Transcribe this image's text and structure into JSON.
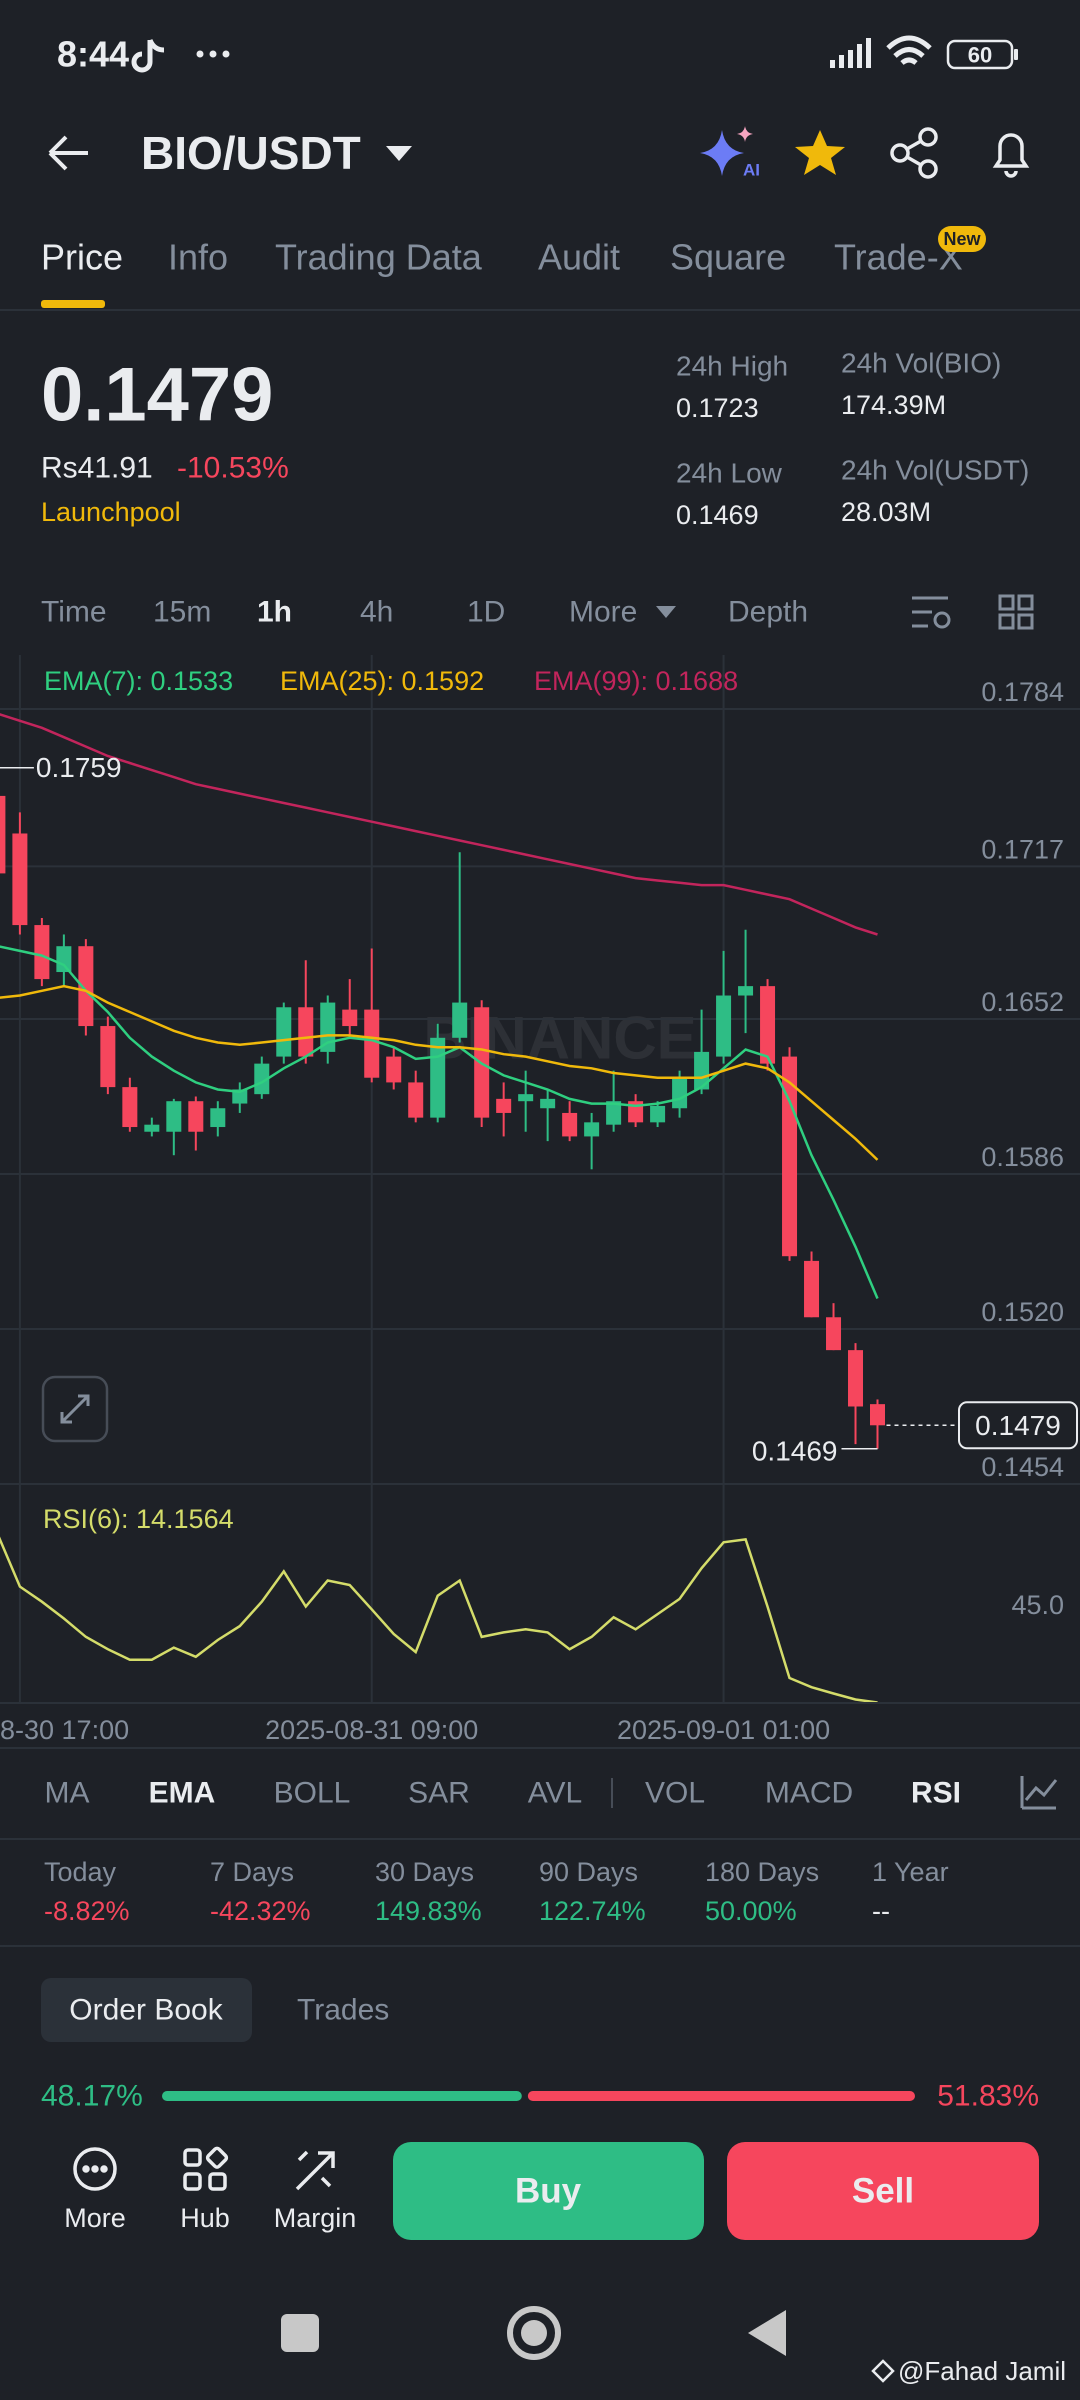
{
  "status_bar": {
    "time": "8:44",
    "battery": "60"
  },
  "header": {
    "pair": "BIO/USDT"
  },
  "tabs": {
    "items": [
      "Price",
      "Info",
      "Trading Data",
      "Audit",
      "Square",
      "Trade-X"
    ],
    "badge": "New"
  },
  "ticker": {
    "price": "0.1479",
    "fiat": "Rs41.91",
    "change": "-10.53%",
    "tag": "Launchpool",
    "stats": [
      {
        "label": "24h High",
        "value": "0.1723"
      },
      {
        "label": "24h Low",
        "value": "0.1469"
      },
      {
        "label": "24h Vol(BIO)",
        "value": "174.39M"
      },
      {
        "label": "24h Vol(USDT)",
        "value": "28.03M"
      }
    ]
  },
  "intervals": {
    "items": [
      "Time",
      "15m",
      "1h",
      "4h",
      "1D",
      "More",
      "Depth"
    ]
  },
  "chart_data": [
    {
      "type": "candlestick",
      "categories": [
        null,
        "8-30 17:00",
        null,
        null,
        null,
        null,
        null,
        null,
        null,
        null,
        null,
        null,
        null,
        null,
        null,
        null,
        null,
        "2025-08-31 09:00",
        null,
        null,
        null,
        null,
        null,
        null,
        null,
        null,
        null,
        null,
        null,
        null,
        null,
        null,
        null,
        "2025-09-01 01:00",
        null,
        null,
        null,
        null,
        null,
        null,
        null
      ],
      "open": [
        0.1747,
        0.1731,
        0.1692,
        0.1672,
        0.1683,
        0.1649,
        0.1623,
        0.1604,
        0.1604,
        0.1617,
        0.1606,
        0.1616,
        0.162,
        0.1636,
        0.1657,
        0.1638,
        0.1656,
        0.1656,
        0.1636,
        0.1625,
        0.161,
        0.1644,
        0.1657,
        0.1618,
        0.1617,
        0.1614,
        0.1612,
        0.1602,
        0.1607,
        0.1617,
        0.1608,
        0.1614,
        0.1622,
        0.1636,
        0.1662,
        0.1666,
        0.1636,
        0.1549,
        0.1525,
        0.1511,
        0.1488
      ],
      "high": [
        0.1759,
        0.174,
        0.1695,
        0.1688,
        0.1686,
        0.1653,
        0.1627,
        0.161,
        0.1618,
        0.1619,
        0.1617,
        0.1625,
        0.1636,
        0.1659,
        0.1677,
        0.1662,
        0.1669,
        0.1682,
        0.164,
        0.163,
        0.165,
        0.1723,
        0.166,
        0.1625,
        0.163,
        0.1622,
        0.1617,
        0.1612,
        0.163,
        0.162,
        0.1617,
        0.163,
        0.1656,
        0.1681,
        0.169,
        0.1669,
        0.164,
        0.1553,
        0.1531,
        0.1514,
        0.149
      ],
      "low": [
        0.1712,
        0.1688,
        0.1666,
        0.1666,
        0.1645,
        0.162,
        0.1604,
        0.1602,
        0.1594,
        0.1596,
        0.1602,
        0.1612,
        0.1618,
        0.1633,
        0.1633,
        0.1633,
        0.1644,
        0.1625,
        0.1622,
        0.1608,
        0.1608,
        0.1642,
        0.1606,
        0.1602,
        0.1604,
        0.16,
        0.16,
        0.1588,
        0.1604,
        0.1606,
        0.1606,
        0.161,
        0.162,
        0.1633,
        0.1646,
        0.163,
        0.1549,
        0.1525,
        0.1511,
        0.1471,
        0.1469
      ],
      "close": [
        0.1714,
        0.1692,
        0.1669,
        0.1683,
        0.1649,
        0.1623,
        0.1606,
        0.1607,
        0.1617,
        0.1604,
        0.1614,
        0.1622,
        0.1633,
        0.1657,
        0.1636,
        0.1659,
        0.1649,
        0.1627,
        0.1625,
        0.161,
        0.1644,
        0.1659,
        0.161,
        0.1612,
        0.162,
        0.1618,
        0.1602,
        0.1608,
        0.1617,
        0.1608,
        0.1615,
        0.1627,
        0.1638,
        0.1662,
        0.1666,
        0.1633,
        0.1551,
        0.1525,
        0.1511,
        0.1487,
        0.1479
      ],
      "up_color": "#2ebd85",
      "down_color": "#f6465d",
      "series": [
        {
          "name": "EMA(7): 0.1533",
          "color": "#2fcf80",
          "values": [
            0.1683,
            0.1681,
            0.1679,
            0.1675,
            0.1664,
            0.1655,
            0.1644,
            0.1636,
            0.163,
            0.1625,
            0.1622,
            0.1621,
            0.1625,
            0.1631,
            0.1636,
            0.1642,
            0.1644,
            0.1643,
            0.164,
            0.1635,
            0.1636,
            0.164,
            0.1633,
            0.1628,
            0.1625,
            0.1622,
            0.1618,
            0.1616,
            0.1616,
            0.1615,
            0.1616,
            0.1618,
            0.1623,
            0.1631,
            0.1639,
            0.1636,
            0.1617,
            0.1594,
            0.1575,
            0.1555,
            0.1533
          ]
        },
        {
          "name": "EMA(25): 0.1592",
          "color": "#f0b90b",
          "values": [
            0.1661,
            0.1662,
            0.1664,
            0.1666,
            0.1664,
            0.1659,
            0.1655,
            0.1651,
            0.1647,
            0.1644,
            0.1642,
            0.1641,
            0.1642,
            0.1643,
            0.1644,
            0.1645,
            0.1645,
            0.1644,
            0.1643,
            0.1641,
            0.164,
            0.164,
            0.1639,
            0.1637,
            0.1636,
            0.1634,
            0.1632,
            0.1631,
            0.1629,
            0.1628,
            0.1627,
            0.1627,
            0.1627,
            0.163,
            0.1633,
            0.1631,
            0.1625,
            0.1617,
            0.1609,
            0.1601,
            0.1592
          ]
        },
        {
          "name": "EMA(99): 0.1688",
          "color": "#c2255c",
          "values": [
            0.1782,
            0.1779,
            0.1776,
            0.1772,
            0.1768,
            0.1764,
            0.1761,
            0.1758,
            0.1755,
            0.1752,
            0.175,
            0.1748,
            0.1746,
            0.1744,
            0.1742,
            0.174,
            0.1738,
            0.1736,
            0.1734,
            0.1732,
            0.173,
            0.1728,
            0.1726,
            0.1724,
            0.1722,
            0.172,
            0.1718,
            0.1716,
            0.1714,
            0.1712,
            0.1711,
            0.171,
            0.1709,
            0.1709,
            0.1707,
            0.1705,
            0.1703,
            0.1699,
            0.1695,
            0.1691,
            0.1688
          ]
        }
      ],
      "ylim": [
        0.1454,
        0.1807
      ],
      "yticks": [
        0.1784,
        0.1717,
        0.1652,
        0.1586,
        {
          "value": 0.152,
          "label": "0.1520"
        },
        0.1454
      ],
      "grid": true,
      "max_marker": 0.1759,
      "min_marker": 0.1469,
      "last_price": 0.1479,
      "watermark": "BINANCE"
    },
    {
      "type": "line",
      "title": "RSI(6): 14.1564",
      "color": "#d4dc6a",
      "values": [
        67.2,
        50.8,
        46.0,
        40.7,
        34.9,
        31.0,
        27.7,
        27.7,
        31.5,
        28.6,
        33.9,
        38.3,
        46.0,
        55.6,
        44.5,
        52.7,
        51.3,
        43.6,
        35.8,
        30.1,
        47.9,
        52.7,
        34.9,
        36.3,
        37.3,
        36.3,
        31.0,
        34.9,
        41.1,
        37.3,
        42.1,
        46.9,
        56.6,
        64.8,
        65.7,
        44.5,
        21.9,
        19.0,
        17.0,
        15.1,
        14.1564
      ],
      "ylim": [
        14,
        81
      ],
      "yticks": [
        {
          "value": 45,
          "label": "45.0"
        }
      ]
    }
  ],
  "indicators": {
    "items": [
      "MA",
      "EMA",
      "BOLL",
      "SAR",
      "AVL",
      "VOL",
      "MACD",
      "RSI"
    ]
  },
  "performance": [
    {
      "label": "Today",
      "value": "-8.82%"
    },
    {
      "label": "7 Days",
      "value": "-42.32%"
    },
    {
      "label": "30 Days",
      "value": "149.83%"
    },
    {
      "label": "90 Days",
      "value": "122.74%"
    },
    {
      "label": "180 Days",
      "value": "50.00%"
    },
    {
      "label": "1 Year",
      "value": "--"
    }
  ],
  "order_book": {
    "tabs": [
      "Order Book",
      "Trades"
    ],
    "ratio": {
      "values": [
        48.17,
        51.83
      ],
      "value_labels": [
        "48.17%",
        "51.83%"
      ],
      "colors": [
        "#2ebd85",
        "#f6465d"
      ]
    }
  },
  "bottom_bar": {
    "items": [
      "More",
      "Hub",
      "Margin"
    ],
    "buy": "Buy",
    "sell": "Sell"
  },
  "watermark": "@Fahad Jamil"
}
